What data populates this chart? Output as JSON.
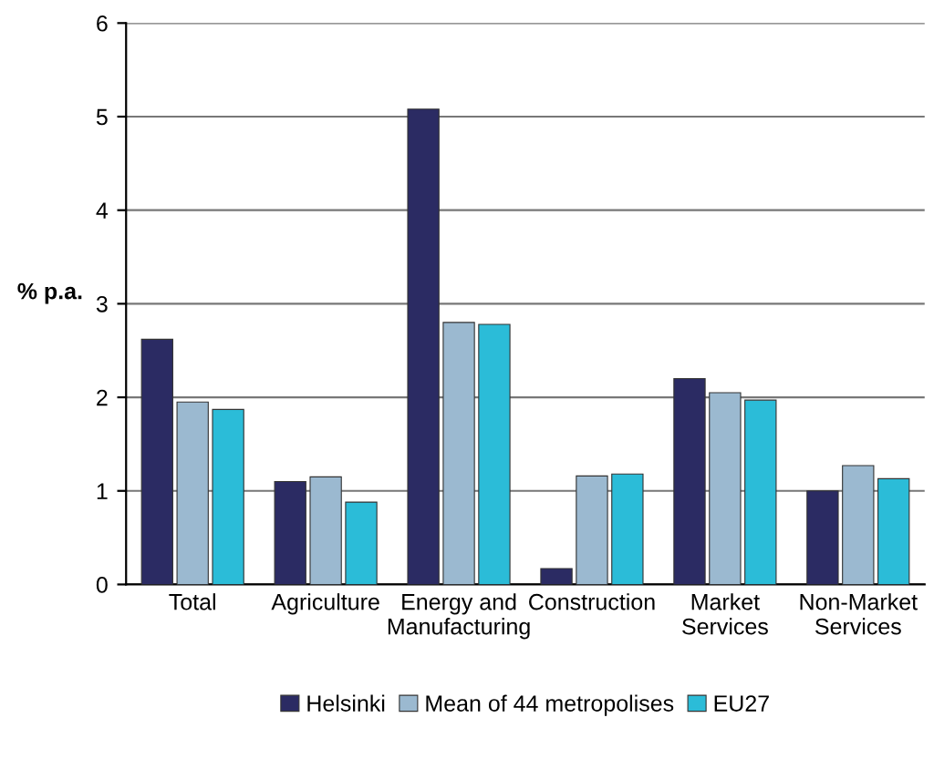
{
  "chart_data": {
    "type": "bar",
    "ylabel": "% p.a.",
    "categories": [
      "Total",
      "Agriculture",
      "Energy and\nManufacturing",
      "Construction",
      "Market\nServices",
      "Non-Market\nServices"
    ],
    "series": [
      {
        "name": "Helsinki",
        "color": "#2b2b63",
        "values": [
          2.62,
          1.1,
          5.08,
          0.17,
          2.2,
          1.0
        ]
      },
      {
        "name": "Mean of 44 metropolises",
        "color": "#9bb9d0",
        "values": [
          1.95,
          1.15,
          2.8,
          1.16,
          2.05,
          1.27
        ]
      },
      {
        "name": "EU27",
        "color": "#2bbcd8",
        "values": [
          1.87,
          0.88,
          2.78,
          1.18,
          1.97,
          1.13
        ]
      }
    ],
    "ylim": [
      0,
      6
    ],
    "yticks": [
      0,
      1,
      2,
      3,
      4,
      5,
      6
    ],
    "grid": "y",
    "legend": "bottom"
  }
}
